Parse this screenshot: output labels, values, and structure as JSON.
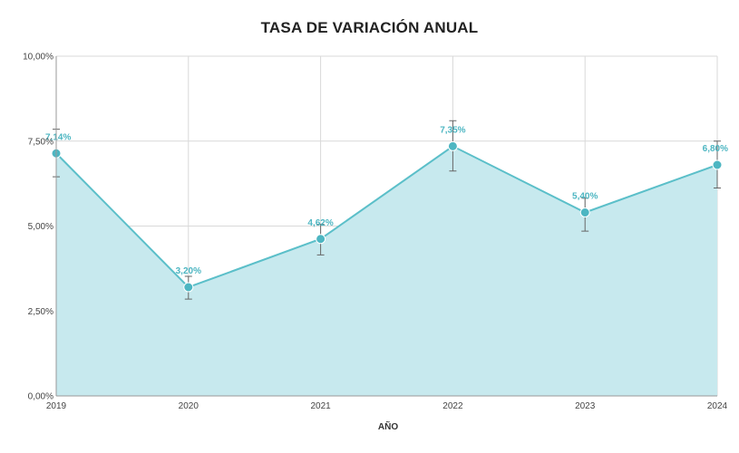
{
  "chart_data": {
    "type": "area",
    "title": "TASA DE VARIACIÓN ANUAL",
    "xlabel": "AÑO",
    "ylabel": "",
    "categories": [
      "2019",
      "2020",
      "2021",
      "2022",
      "2023",
      "2024"
    ],
    "series": [
      {
        "name": "Tasa de variación anual",
        "values": [
          7.14,
          3.2,
          4.62,
          7.35,
          5.4,
          6.8
        ],
        "labels": [
          "7,14%",
          "3,20%",
          "4,62%",
          "7,35%",
          "5,40%",
          "6,80%"
        ],
        "error_low": [
          6.45,
          2.85,
          4.15,
          6.62,
          4.85,
          6.12
        ],
        "error_high": [
          7.85,
          3.52,
          5.05,
          8.1,
          5.82,
          7.5
        ]
      }
    ],
    "ylim": [
      0,
      10
    ],
    "yticks": [
      0,
      2.5,
      5,
      7.5,
      10
    ],
    "ytick_labels": [
      "0,00%",
      "2,50%",
      "5,00%",
      "7,50%",
      "10,00%"
    ],
    "grid": true,
    "legend": "none",
    "colors": {
      "line": "#5bbfc9",
      "marker": "#4db6c2",
      "fill": "#c7e9ee",
      "label": "#4db6c2",
      "error_bar": "#666666",
      "grid": "#d9d9d9",
      "axis": "#999999"
    }
  }
}
